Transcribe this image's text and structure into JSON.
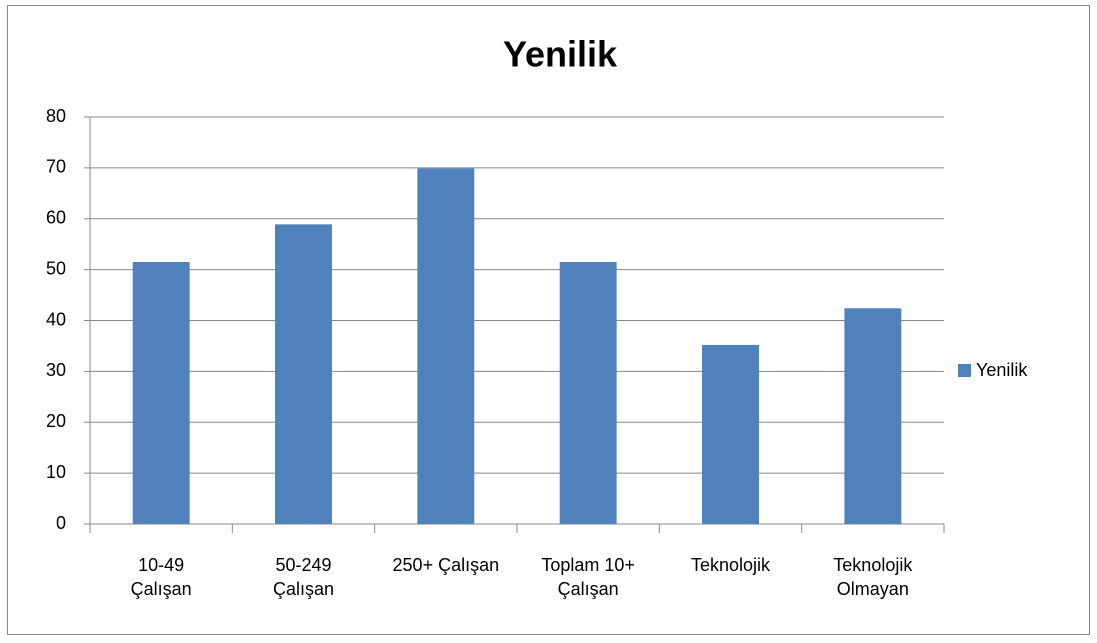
{
  "chart_data": {
    "type": "bar",
    "title": "Yenilik",
    "categories": [
      "10-49\nÇalışan",
      "50-249\nÇalışan",
      "250+ Çalışan",
      "Toplam 10+\nÇalışan",
      "Teknolojik",
      "Teknolojik\nOlmayan"
    ],
    "series": [
      {
        "name": "Yenilik",
        "color": "#4f81bd",
        "values": [
          51.5,
          58.9,
          69.9,
          51.5,
          35.2,
          42.4
        ]
      }
    ],
    "ylim": [
      0,
      80
    ],
    "yticks": [
      0,
      10,
      20,
      30,
      40,
      50,
      60,
      70,
      80
    ],
    "grid": true,
    "legend": "right"
  }
}
